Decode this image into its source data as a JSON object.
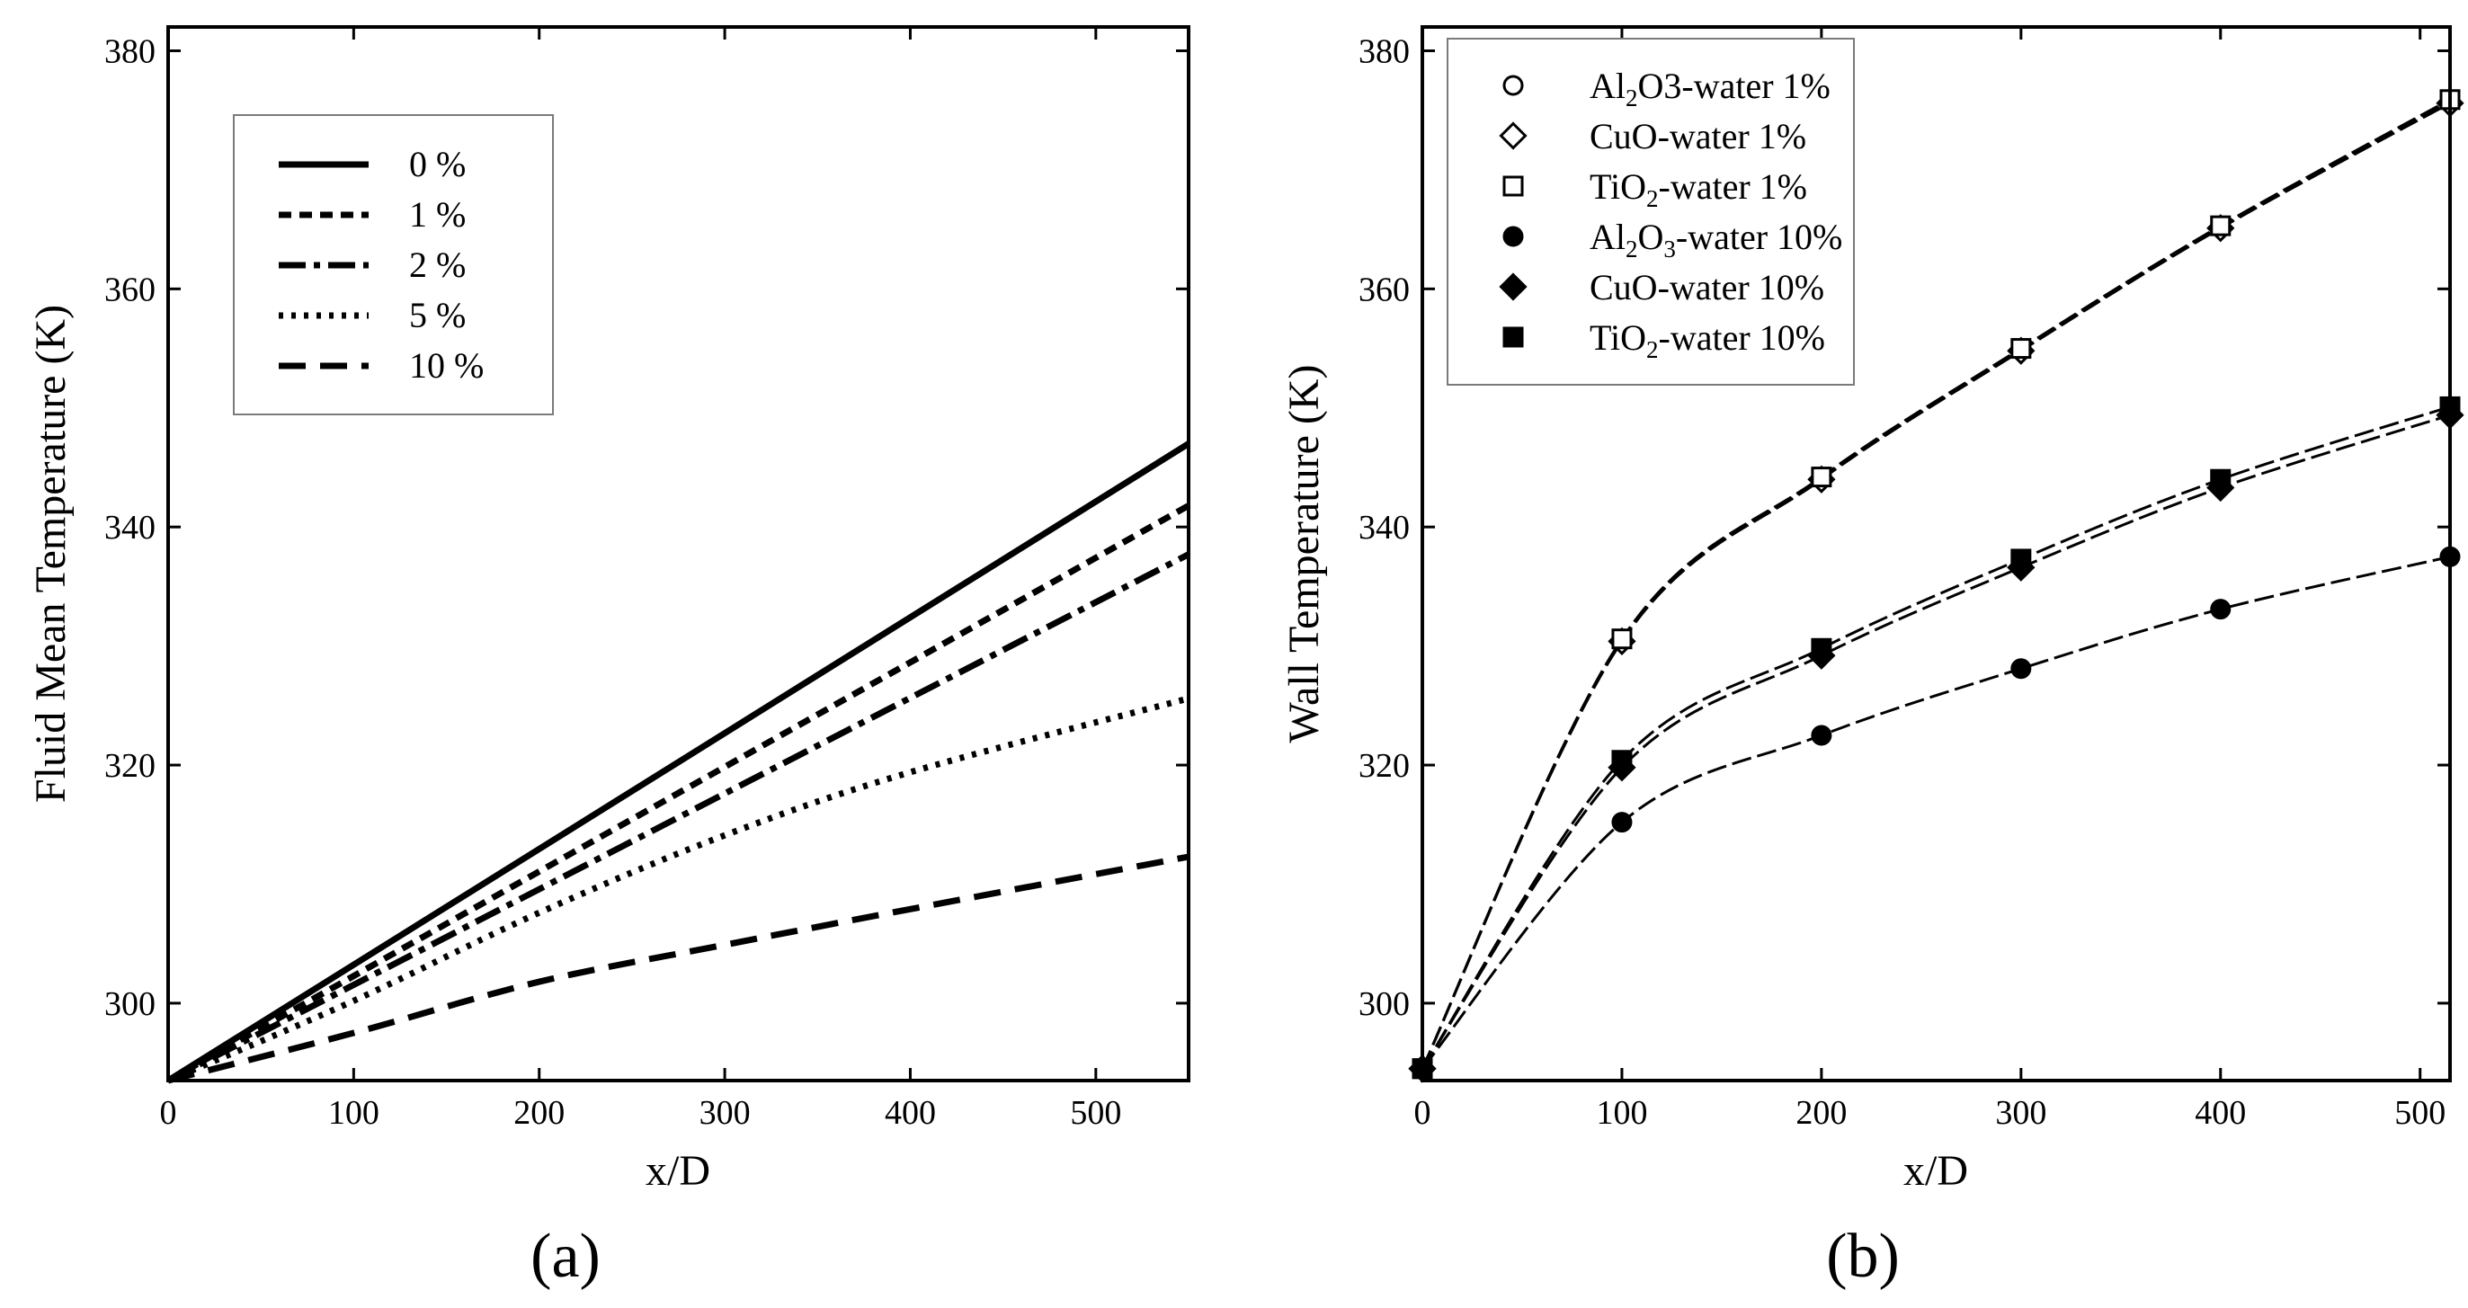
{
  "chart_data": [
    {
      "id": "a",
      "type": "line",
      "panel_label": "(a)",
      "xlabel": "x/D",
      "ylabel": "Fluid Mean Temperature (K)",
      "xlim": [
        0,
        550
      ],
      "ylim": [
        293.5,
        382
      ],
      "xticks": [
        0,
        100,
        200,
        300,
        400,
        500
      ],
      "yticks": [
        300,
        320,
        340,
        360,
        380
      ],
      "xtick_labels": [
        "0",
        "100",
        "200",
        "300",
        "400",
        "500"
      ],
      "ytick_labels": [
        "300",
        "320",
        "340",
        "360",
        "380"
      ],
      "legend_position": "upper-left",
      "series": [
        {
          "name": "0 %",
          "style": "solid",
          "x": [
            0,
            550
          ],
          "y": [
            293.5,
            347
          ]
        },
        {
          "name": "1 %",
          "style": "dash",
          "x": [
            0,
            550
          ],
          "y": [
            293.5,
            341.8
          ]
        },
        {
          "name": "2 %",
          "style": "dashdot",
          "x": [
            0,
            550
          ],
          "y": [
            293.5,
            337.7
          ]
        },
        {
          "name": "5 %",
          "style": "dot",
          "x": [
            0,
            100,
            200,
            300,
            400,
            550
          ],
          "y": [
            293.5,
            300.2,
            307.6,
            314.1,
            319.4,
            325.6
          ]
        },
        {
          "name": "10 %",
          "style": "longdash",
          "x": [
            0,
            100,
            200,
            300,
            400,
            550
          ],
          "y": [
            293.5,
            297.5,
            301.8,
            304.9,
            307.9,
            312.3
          ]
        }
      ]
    },
    {
      "id": "b",
      "type": "line",
      "panel_label": "(b)",
      "xlabel": "x/D",
      "ylabel": "Wall Temperature (K)",
      "xlim": [
        0,
        515
      ],
      "ylim": [
        293.5,
        382
      ],
      "xticks": [
        0,
        100,
        200,
        300,
        400,
        500
      ],
      "yticks": [
        300,
        320,
        340,
        360,
        380
      ],
      "xtick_labels": [
        "0",
        "100",
        "200",
        "300",
        "400",
        "500"
      ],
      "ytick_labels": [
        "300",
        "320",
        "340",
        "360",
        "380"
      ],
      "legend_position": "upper-left",
      "series": [
        {
          "name": "Al2O3-water 1%",
          "legend_base": "Al",
          "legend_sub": "2",
          "legend_rest": "O3-water 1%",
          "marker": "circle-open",
          "x": [
            0,
            100,
            200,
            300,
            400,
            515
          ],
          "y": [
            294.5,
            330.5,
            344.1,
            354.9,
            365.2,
            375.8
          ]
        },
        {
          "name": "CuO-water 1%",
          "legend_base": "CuO-water 1%",
          "legend_sub": "",
          "legend_rest": "",
          "marker": "diamond-open",
          "x": [
            0,
            100,
            200,
            300,
            400,
            515
          ],
          "y": [
            294.5,
            330.4,
            344.0,
            354.8,
            365.1,
            375.6
          ]
        },
        {
          "name": "TiO2-water 1%",
          "legend_base": "TiO",
          "legend_sub": "2",
          "legend_rest": "-water 1%",
          "marker": "square-open",
          "x": [
            0,
            100,
            200,
            300,
            400,
            515
          ],
          "y": [
            294.5,
            330.6,
            344.2,
            355.0,
            365.3,
            375.9
          ]
        },
        {
          "name": "Al2O3-water 10%",
          "legend_base": "Al",
          "legend_sub": "2",
          "legend_mid": "O",
          "legend_sub2": "3",
          "legend_rest": "-water 10%",
          "marker": "circle-filled",
          "x": [
            0,
            100,
            200,
            300,
            400,
            515
          ],
          "y": [
            294.5,
            315.2,
            322.5,
            328.1,
            333.1,
            337.5
          ]
        },
        {
          "name": "CuO-water 10%",
          "legend_base": "CuO-water 10%",
          "legend_sub": "",
          "legend_rest": "",
          "marker": "diamond-filled",
          "x": [
            0,
            100,
            200,
            300,
            400,
            515
          ],
          "y": [
            294.5,
            319.8,
            329.2,
            336.6,
            343.3,
            349.4
          ]
        },
        {
          "name": "TiO2-water 10%",
          "legend_base": "TiO",
          "legend_sub": "2",
          "legend_rest": "-water 10%",
          "marker": "square-filled",
          "x": [
            0,
            100,
            200,
            300,
            400,
            515
          ],
          "y": [
            294.5,
            320.4,
            329.8,
            337.3,
            344.0,
            350.1
          ]
        }
      ]
    }
  ]
}
